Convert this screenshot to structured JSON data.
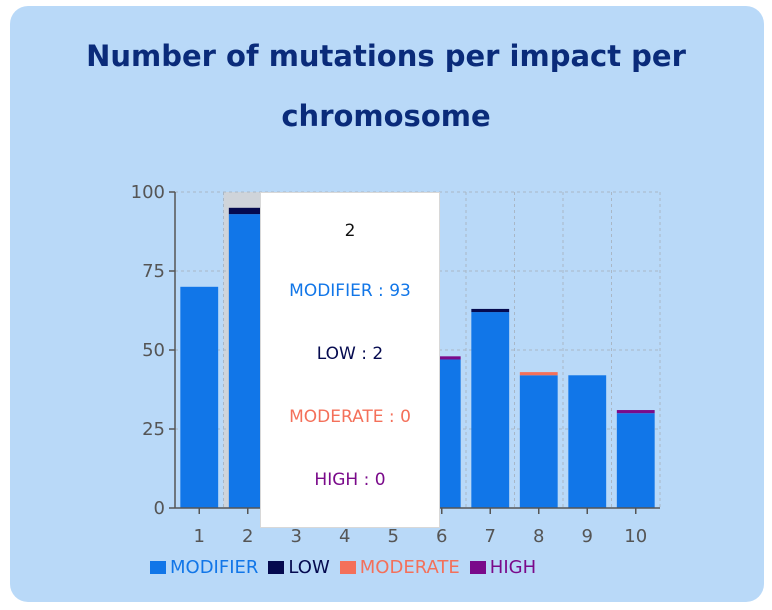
{
  "chart_data": {
    "type": "bar",
    "stacked": true,
    "title": "Number of mutations per impact per chromosome",
    "title_lines": [
      "Number of mutations per impact per",
      "chromosome"
    ],
    "xlabel": "",
    "ylabel": "",
    "categories": [
      "1",
      "2",
      "3",
      "4",
      "5",
      "6",
      "7",
      "8",
      "9",
      "10"
    ],
    "ylim": [
      0,
      100
    ],
    "yticks": [
      "0",
      "25",
      "50",
      "75",
      "100"
    ],
    "grid": true,
    "legend_position": "bottom",
    "series": [
      {
        "name": "MODIFIER",
        "color": "#1176e8",
        "values": [
          70,
          93,
          0,
          0,
          0,
          47,
          62,
          42,
          42,
          30
        ]
      },
      {
        "name": "LOW",
        "color": "#050a4f",
        "values": [
          0,
          2,
          0,
          0,
          0,
          0,
          1,
          0,
          0,
          0
        ]
      },
      {
        "name": "MODERATE",
        "color": "#f4705a",
        "values": [
          0,
          0,
          0,
          0,
          0,
          0,
          0,
          1,
          0,
          0
        ]
      },
      {
        "name": "HIGH",
        "color": "#7a0a8a",
        "values": [
          0,
          0,
          0,
          0,
          0,
          1,
          0,
          0,
          0,
          1
        ]
      }
    ],
    "tooltip": {
      "category": "2",
      "lines": [
        {
          "label": "MODIFIER",
          "value": "93",
          "color": "#1176e8"
        },
        {
          "label": "LOW",
          "value": "2",
          "color": "#050a4f"
        },
        {
          "label": "MODERATE",
          "value": "0",
          "color": "#f4705a"
        },
        {
          "label": "HIGH",
          "value": "0",
          "color": "#7a0a8a"
        }
      ]
    }
  }
}
